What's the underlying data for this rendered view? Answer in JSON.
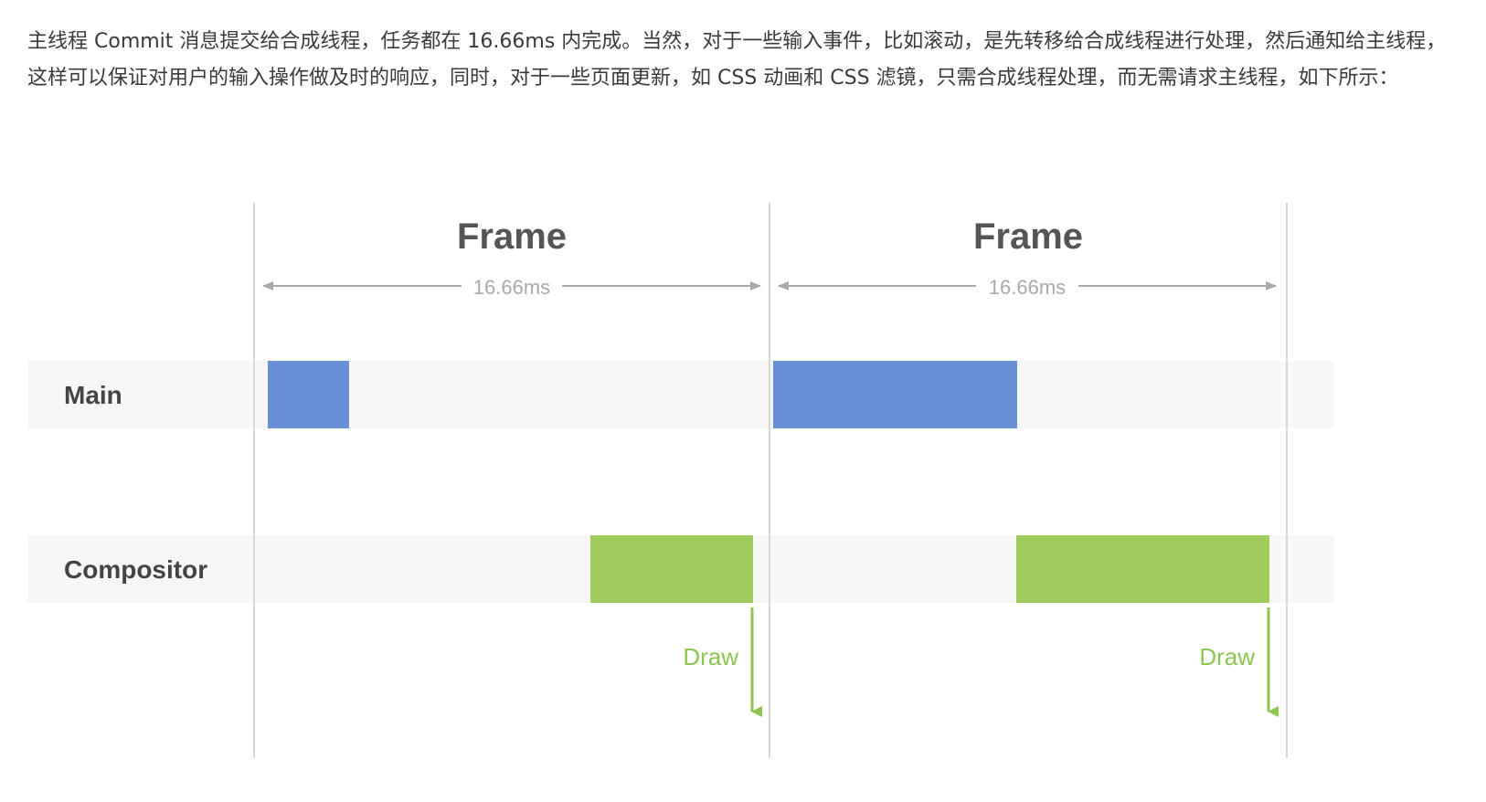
{
  "article": {
    "paragraph": "主线程 Commit 消息提交给合成线程，任务都在 16.66ms 内完成。当然，对于一些输入事件，比如滚动，是先转移给合成线程进行处理，然后通知给主线程，这样可以保证对用户的输入操作做及时的响应，同时，对于一些页面更新，如 CSS 动画和 CSS 滤镜，只需合成线程处理，而无需请求主线程，如下所示："
  },
  "diagram": {
    "frames": [
      {
        "title": "Frame",
        "duration": "16.66ms"
      },
      {
        "title": "Frame",
        "duration": "16.66ms"
      }
    ],
    "rows": [
      {
        "label": "Main"
      },
      {
        "label": "Compositor"
      }
    ],
    "draw_labels": [
      "Draw",
      "Draw"
    ],
    "colors": {
      "main_task": "#6790d6",
      "compositor_task": "#a0cc5e",
      "draw_arrow": "#8cc64f",
      "lane_bg": "#f7f7f7",
      "divider": "#d6d6d6",
      "span_arrow": "#a9a9a9",
      "frame_title": "#555555",
      "row_label": "#444444"
    }
  }
}
